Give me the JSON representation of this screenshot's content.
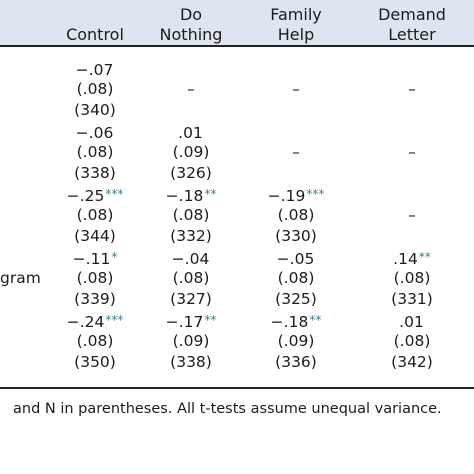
{
  "columns": [
    {
      "lines": [
        "Control"
      ]
    },
    {
      "lines": [
        "Do",
        "Nothing"
      ]
    },
    {
      "lines": [
        "Family",
        "Help"
      ]
    },
    {
      "lines": [
        "Demand",
        "Letter"
      ]
    }
  ],
  "row_labels": [
    "",
    "",
    "",
    "gram",
    ""
  ],
  "rows": [
    [
      {
        "est": "−.07",
        "stars": "",
        "se": "(.08)",
        "n": "(340)"
      },
      {
        "est": "–"
      },
      {
        "est": "–"
      },
      {
        "est": "–"
      }
    ],
    [
      {
        "est": "−.06",
        "stars": "",
        "se": "(.08)",
        "n": "(338)"
      },
      {
        "est": ".01",
        "stars": "",
        "se": "(.09)",
        "n": "(326)"
      },
      {
        "est": "–"
      },
      {
        "est": "–"
      }
    ],
    [
      {
        "est": "−.25",
        "stars": "***",
        "se": "(.08)",
        "n": "(344)"
      },
      {
        "est": "−.18",
        "stars": "**",
        "se": "(.08)",
        "n": "(332)"
      },
      {
        "est": "−.19",
        "stars": "***",
        "se": "(.08)",
        "n": "(330)"
      },
      {
        "est": "–"
      }
    ],
    [
      {
        "est": "−.11",
        "stars": "*",
        "se": "(.08)",
        "n": "(339)"
      },
      {
        "est": "−.04",
        "stars": "",
        "se": "(.08)",
        "n": "(327)"
      },
      {
        "est": "−.05",
        "stars": "",
        "se": "(.08)",
        "n": "(325)"
      },
      {
        "est": ".14",
        "stars": "**",
        "se": "(.08)",
        "n": "(331)"
      }
    ],
    [
      {
        "est": "−.24",
        "stars": "***",
        "se": "(.08)",
        "n": "(350)"
      },
      {
        "est": "−.17",
        "stars": "**",
        "se": "(.09)",
        "n": "(338)"
      },
      {
        "est": "−.18",
        "stars": "**",
        "se": "(.09)",
        "n": "(336)"
      },
      {
        "est": ".01",
        "stars": "",
        "se": "(.08)",
        "n": "(342)"
      }
    ]
  ],
  "footnote": "and N in parentheses. All t-tests assume unequal variance."
}
